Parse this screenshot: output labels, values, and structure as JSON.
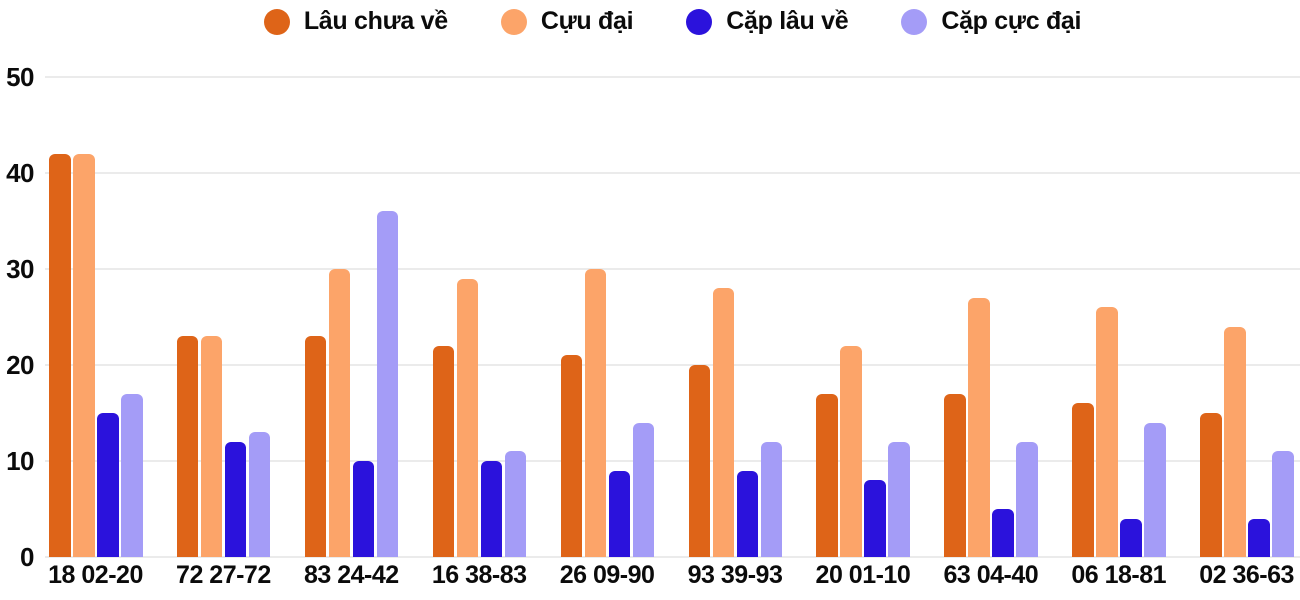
{
  "chart_data": {
    "type": "bar",
    "title": "",
    "xlabel": "",
    "ylabel": "",
    "ylim": [
      0,
      50
    ],
    "yticks": [
      0,
      10,
      20,
      30,
      40,
      50
    ],
    "grid": true,
    "legend_position": "top-center",
    "categories": [
      "18 02-20",
      "72 27-72",
      "83 24-42",
      "16 38-83",
      "26 09-90",
      "93 39-93",
      "20 01-10",
      "63 04-40",
      "06 18-81",
      "02 36-63"
    ],
    "series": [
      {
        "name": "Lâu chưa về",
        "color": "#DE6418",
        "values": [
          42,
          23,
          23,
          22,
          21,
          20,
          17,
          17,
          16,
          15
        ]
      },
      {
        "name": "Cựu đại",
        "color": "#FCA469",
        "values": [
          42,
          23,
          30,
          29,
          30,
          28,
          22,
          27,
          26,
          24
        ]
      },
      {
        "name": "Cặp lâu về",
        "color": "#2B12DC",
        "values": [
          15,
          12,
          10,
          10,
          9,
          9,
          8,
          5,
          4,
          4
        ]
      },
      {
        "name": "Cặp cực đại",
        "color": "#A49CF7",
        "values": [
          17,
          13,
          36,
          11,
          14,
          12,
          12,
          12,
          14,
          11
        ]
      }
    ],
    "grid_color": "#ebebeb",
    "text_color": "#0b0b0b",
    "background_color": "#ffffff"
  }
}
